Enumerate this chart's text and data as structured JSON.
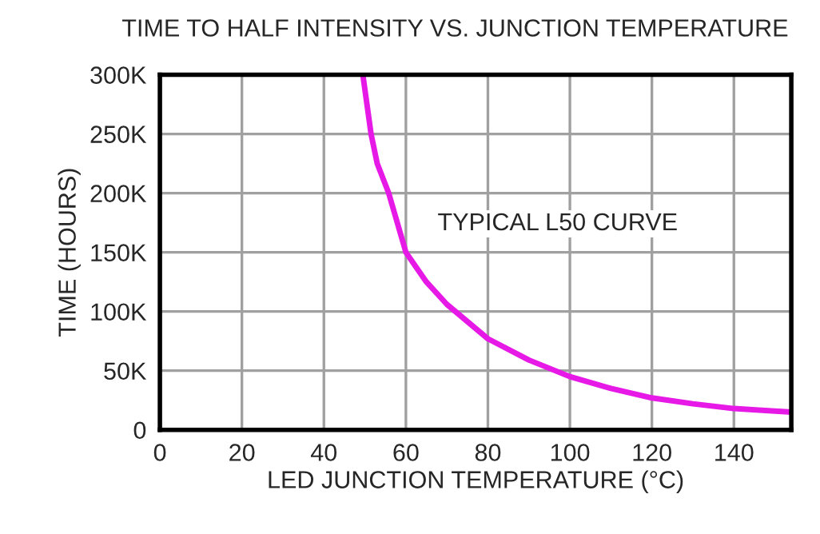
{
  "chart_data": {
    "type": "line",
    "title": "TIME TO HALF INTENSITY VS. JUNCTION TEMPERATURE",
    "xlabel": "LED JUNCTION TEMPERATURE (°C)",
    "ylabel": "TIME (HOURS)",
    "annotations": [
      "TYPICAL L50 CURVE"
    ],
    "series": [
      {
        "color": "#e619e6",
        "x": [
          49.5,
          50.5,
          51.5,
          53,
          55.8,
          60,
          65,
          70,
          80,
          90,
          100,
          110,
          120,
          130,
          140,
          154
        ],
        "values": [
          300000,
          275000,
          250000,
          225000,
          200000,
          150000,
          125000,
          106000,
          77000,
          59000,
          45000,
          35000,
          27000,
          22000,
          18000,
          15000
        ]
      }
    ],
    "xlim": [
      0,
      154
    ],
    "xticks": [
      0,
      20,
      40,
      60,
      80,
      100,
      120,
      140
    ],
    "ylim": [
      0,
      300000
    ],
    "yticks": [
      0,
      {
        "value": 50000,
        "label": "50K"
      },
      {
        "value": 100000,
        "label": "100K"
      },
      {
        "value": 150000,
        "label": "150K"
      },
      {
        "value": 200000,
        "label": "200K"
      },
      {
        "value": 250000,
        "label": "250K"
      },
      {
        "value": 300000,
        "label": "300K"
      }
    ],
    "grid": true,
    "legend": false,
    "marker": "none",
    "line_style": "solid"
  }
}
